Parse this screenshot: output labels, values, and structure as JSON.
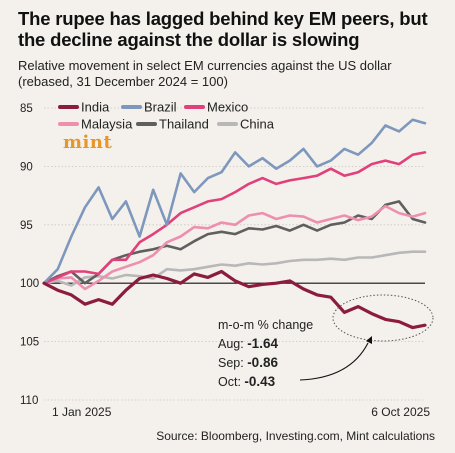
{
  "title": "The rupee has lagged behind key EM peers, but the decline against the dollar is slowing",
  "subtitle": "Relative movement in select EM currencies against the US dollar (rebased, 31 December 2024 = 100)",
  "source": "Source: Bloomberg, Investing.com, Mint calculations",
  "logo_text": "mint",
  "chart_data": {
    "type": "line",
    "y_inverted": true,
    "ylim": [
      85,
      110
    ],
    "yticks": [
      85,
      90,
      95,
      100,
      105,
      110
    ],
    "x_tick_labels": [
      "1 Jan 2025",
      "6 Oct 2025"
    ],
    "x": [
      0,
      10,
      20,
      30,
      40,
      50,
      60,
      70,
      80,
      90,
      100,
      110,
      120,
      130,
      140,
      150,
      160,
      170,
      180,
      190,
      200,
      210,
      220,
      230,
      240,
      250,
      260,
      270,
      279
    ],
    "series": [
      {
        "name": "India",
        "color": "#8c1c3e",
        "width": 3.2,
        "values": [
          100.0,
          100.6,
          101.0,
          101.8,
          101.4,
          101.8,
          100.6,
          99.6,
          99.3,
          99.6,
          100.0,
          99.2,
          99.5,
          99.0,
          99.8,
          100.3,
          100.1,
          100.0,
          99.8,
          100.5,
          101.0,
          101.2,
          102.5,
          102.0,
          102.6,
          103.1,
          103.3,
          103.8,
          103.6
        ]
      },
      {
        "name": "Brazil",
        "color": "#7e97bd",
        "width": 2.6,
        "values": [
          100.0,
          98.8,
          96.0,
          93.5,
          91.8,
          94.5,
          93.0,
          96.0,
          92.0,
          95.0,
          90.6,
          92.2,
          91.0,
          90.5,
          88.8,
          90.0,
          89.3,
          90.2,
          89.5,
          88.5,
          90.0,
          89.5,
          88.5,
          89.0,
          88.0,
          86.5,
          87.0,
          86.0,
          86.3
        ]
      },
      {
        "name": "Mexico",
        "color": "#e0407c",
        "width": 2.6,
        "values": [
          100.0,
          99.5,
          99.0,
          99.0,
          99.2,
          98.0,
          98.0,
          96.5,
          95.8,
          95.0,
          94.0,
          93.5,
          93.0,
          92.8,
          92.2,
          91.5,
          91.0,
          91.5,
          91.2,
          91.0,
          90.8,
          90.2,
          90.8,
          90.5,
          89.8,
          89.5,
          89.8,
          89.0,
          88.8
        ]
      },
      {
        "name": "Malaysia",
        "color": "#ee8fb0",
        "width": 2.6,
        "values": [
          100.0,
          99.6,
          99.5,
          100.5,
          99.8,
          99.0,
          98.6,
          98.2,
          97.6,
          96.5,
          96.0,
          95.2,
          95.3,
          94.8,
          95.0,
          94.2,
          94.0,
          94.5,
          94.2,
          94.3,
          94.8,
          94.5,
          94.2,
          94.6,
          94.3,
          93.4,
          94.0,
          94.3,
          94.0
        ]
      },
      {
        "name": "Thailand",
        "color": "#5f5f5f",
        "width": 2.6,
        "values": [
          100.0,
          99.4,
          99.0,
          100.0,
          99.2,
          98.0,
          97.6,
          97.3,
          97.1,
          96.8,
          97.1,
          96.4,
          95.8,
          95.6,
          95.8,
          95.3,
          95.4,
          95.1,
          95.5,
          95.0,
          95.5,
          95.0,
          94.8,
          94.2,
          94.5,
          93.3,
          93.0,
          94.5,
          94.8
        ]
      },
      {
        "name": "China",
        "color": "#b8b8b8",
        "width": 2.6,
        "values": [
          100.0,
          99.8,
          100.2,
          99.5,
          99.4,
          99.6,
          99.3,
          99.4,
          99.6,
          98.8,
          98.9,
          98.8,
          98.6,
          98.4,
          98.5,
          98.3,
          98.4,
          98.3,
          98.1,
          98.0,
          98.0,
          97.9,
          98.0,
          97.8,
          97.8,
          97.6,
          97.4,
          97.3,
          97.3
        ]
      }
    ],
    "legend_placement": "top-left",
    "annotation": {
      "heading": "m-o-m % change",
      "rows": [
        {
          "label": "Aug:",
          "value": "-1.64"
        },
        {
          "label": "Sep:",
          "value": "-0.86"
        },
        {
          "label": "Oct:",
          "value": "-0.43"
        }
      ]
    }
  }
}
